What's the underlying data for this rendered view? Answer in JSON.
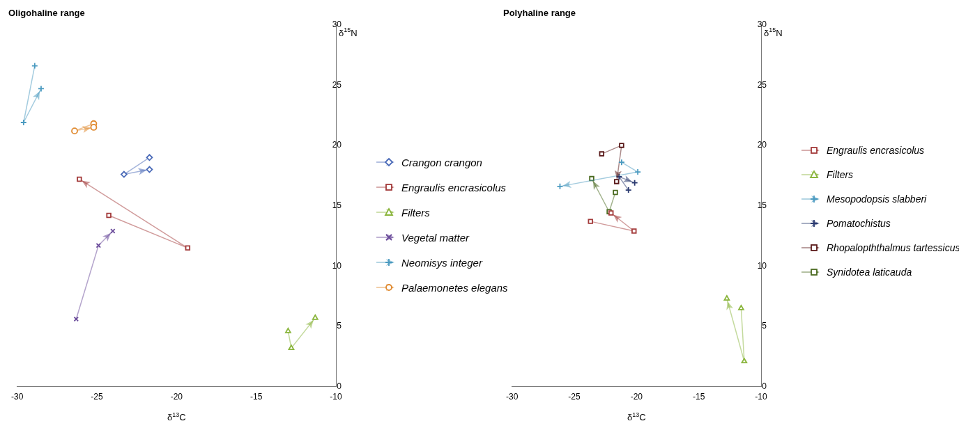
{
  "chart_data": [
    {
      "type": "line",
      "title": "Oligohaline range",
      "xlabel": "δ$^{13}$C",
      "ylabel": "δ$^{15}$N",
      "xlim": [
        -30,
        -10
      ],
      "xticks": [
        -30,
        -25,
        -20,
        -15,
        -10
      ],
      "ylim": [
        0,
        30
      ],
      "yticks": [
        0,
        5,
        10,
        15,
        20,
        25,
        30
      ],
      "grid": false,
      "legend": "right",
      "series": [
        {
          "name": "Crangon crangon",
          "color": "#4a6ab8",
          "marker": "diamond",
          "x": [
            -21.7,
            -23.3,
            -21.7
          ],
          "values": [
            19.0,
            17.6,
            18.0
          ]
        },
        {
          "name": "Engraulis encrasicolus",
          "color": "#a33a3a",
          "marker": "square",
          "x": [
            -24.25,
            -19.3,
            -26.1
          ],
          "values": [
            14.2,
            11.5,
            17.2
          ]
        },
        {
          "name": "Filters",
          "color": "#8ab53c",
          "marker": "triangle",
          "x": [
            -13.0,
            -12.8,
            -11.3
          ],
          "values": [
            4.6,
            3.2,
            5.7
          ]
        },
        {
          "name": "Vegetal matter",
          "color": "#6a4a9a",
          "marker": "x",
          "x": [
            -26.3,
            -24.9,
            -24.0
          ],
          "values": [
            5.6,
            11.7,
            12.9
          ]
        },
        {
          "name": "Neomisys integer",
          "color": "#4a9ac0",
          "marker": "cross",
          "x": [
            -28.9,
            -29.6,
            -28.5
          ],
          "values": [
            26.6,
            21.9,
            24.7
          ]
        },
        {
          "name": "Palaemonetes elegans",
          "color": "#e08a30",
          "marker": "circle",
          "x": [
            -25.2,
            -26.4,
            -25.2
          ],
          "values": [
            21.8,
            21.2,
            21.5
          ]
        }
      ]
    },
    {
      "type": "line",
      "title": "Polyhaline range",
      "xlabel": "δ$^{13}$C",
      "ylabel": "δ$^{15}$N",
      "xlim": [
        -30,
        -10
      ],
      "xticks": [
        -30,
        -25,
        -20,
        -15,
        -10
      ],
      "ylim": [
        0,
        30
      ],
      "yticks": [
        0,
        5,
        10,
        15,
        20,
        25,
        30
      ],
      "grid": false,
      "legend": "right",
      "series": [
        {
          "name": "Engraulis encrasicolus",
          "color": "#a33a3a",
          "marker": "square",
          "x": [
            -23.7,
            -20.2,
            -22.05
          ],
          "values": [
            13.7,
            12.9,
            14.4
          ]
        },
        {
          "name": "Filters",
          "color": "#8ab53c",
          "marker": "triangle",
          "x": [
            -11.6,
            -11.35,
            -12.75
          ],
          "values": [
            6.5,
            2.1,
            7.3
          ]
        },
        {
          "name": "Mesopodopsis slabberi",
          "color": "#4a9ac0",
          "marker": "cross",
          "x": [
            -21.2,
            -19.9,
            -26.15
          ],
          "values": [
            18.6,
            17.8,
            16.6
          ]
        },
        {
          "name": "Pomatochistus",
          "color": "#2a3a70",
          "marker": "cross",
          "x": [
            -20.65,
            -21.4,
            -20.15
          ],
          "values": [
            16.3,
            17.4,
            16.9
          ]
        },
        {
          "name": "Rhopalopththalmus tartessicus",
          "color": "#5a1a1a",
          "marker": "square",
          "x": [
            -22.8,
            -21.2,
            -21.6
          ],
          "values": [
            19.3,
            20.0,
            17.0
          ]
        },
        {
          "name": "Synidotea laticauda",
          "color": "#4a6a20",
          "marker": "square",
          "x": [
            -21.7,
            -22.2,
            -23.6
          ],
          "values": [
            16.1,
            14.5,
            17.25
          ]
        }
      ]
    }
  ]
}
